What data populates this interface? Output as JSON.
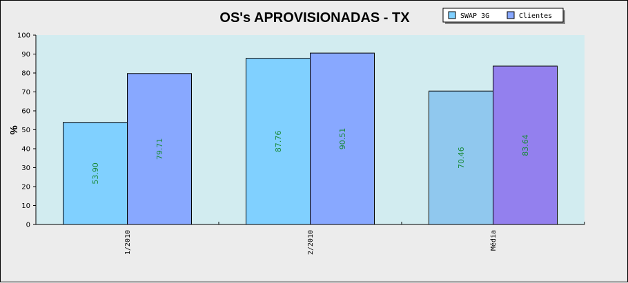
{
  "chart_data": {
    "type": "bar",
    "title": "OS's APROVISIONADAS - TX",
    "xlabel": "",
    "ylabel": "%",
    "ylim": [
      0,
      100
    ],
    "yticks": [
      0,
      10,
      20,
      30,
      40,
      50,
      60,
      70,
      80,
      90,
      100
    ],
    "categories": [
      "1/2010",
      "2/2010",
      "Média"
    ],
    "series": [
      {
        "name": "SWAP 3G",
        "values": [
          53.9,
          87.76,
          70.46
        ],
        "labels": [
          "53.90",
          "87.76",
          "70.46"
        ],
        "colors": [
          "#80d0ff",
          "#80d0ff",
          "#90c8ee"
        ]
      },
      {
        "name": "Clientes",
        "values": [
          79.71,
          90.51,
          83.64
        ],
        "labels": [
          "79.71",
          "90.51",
          "83.64"
        ],
        "colors": [
          "#88a8ff",
          "#88a8ff",
          "#9380ee"
        ]
      }
    ],
    "legend_position": "top-right",
    "grid": false,
    "colors": {
      "plot_background": "#d2ecf0",
      "page_background": "#ececec",
      "data_label": "#1a8a3a"
    }
  }
}
